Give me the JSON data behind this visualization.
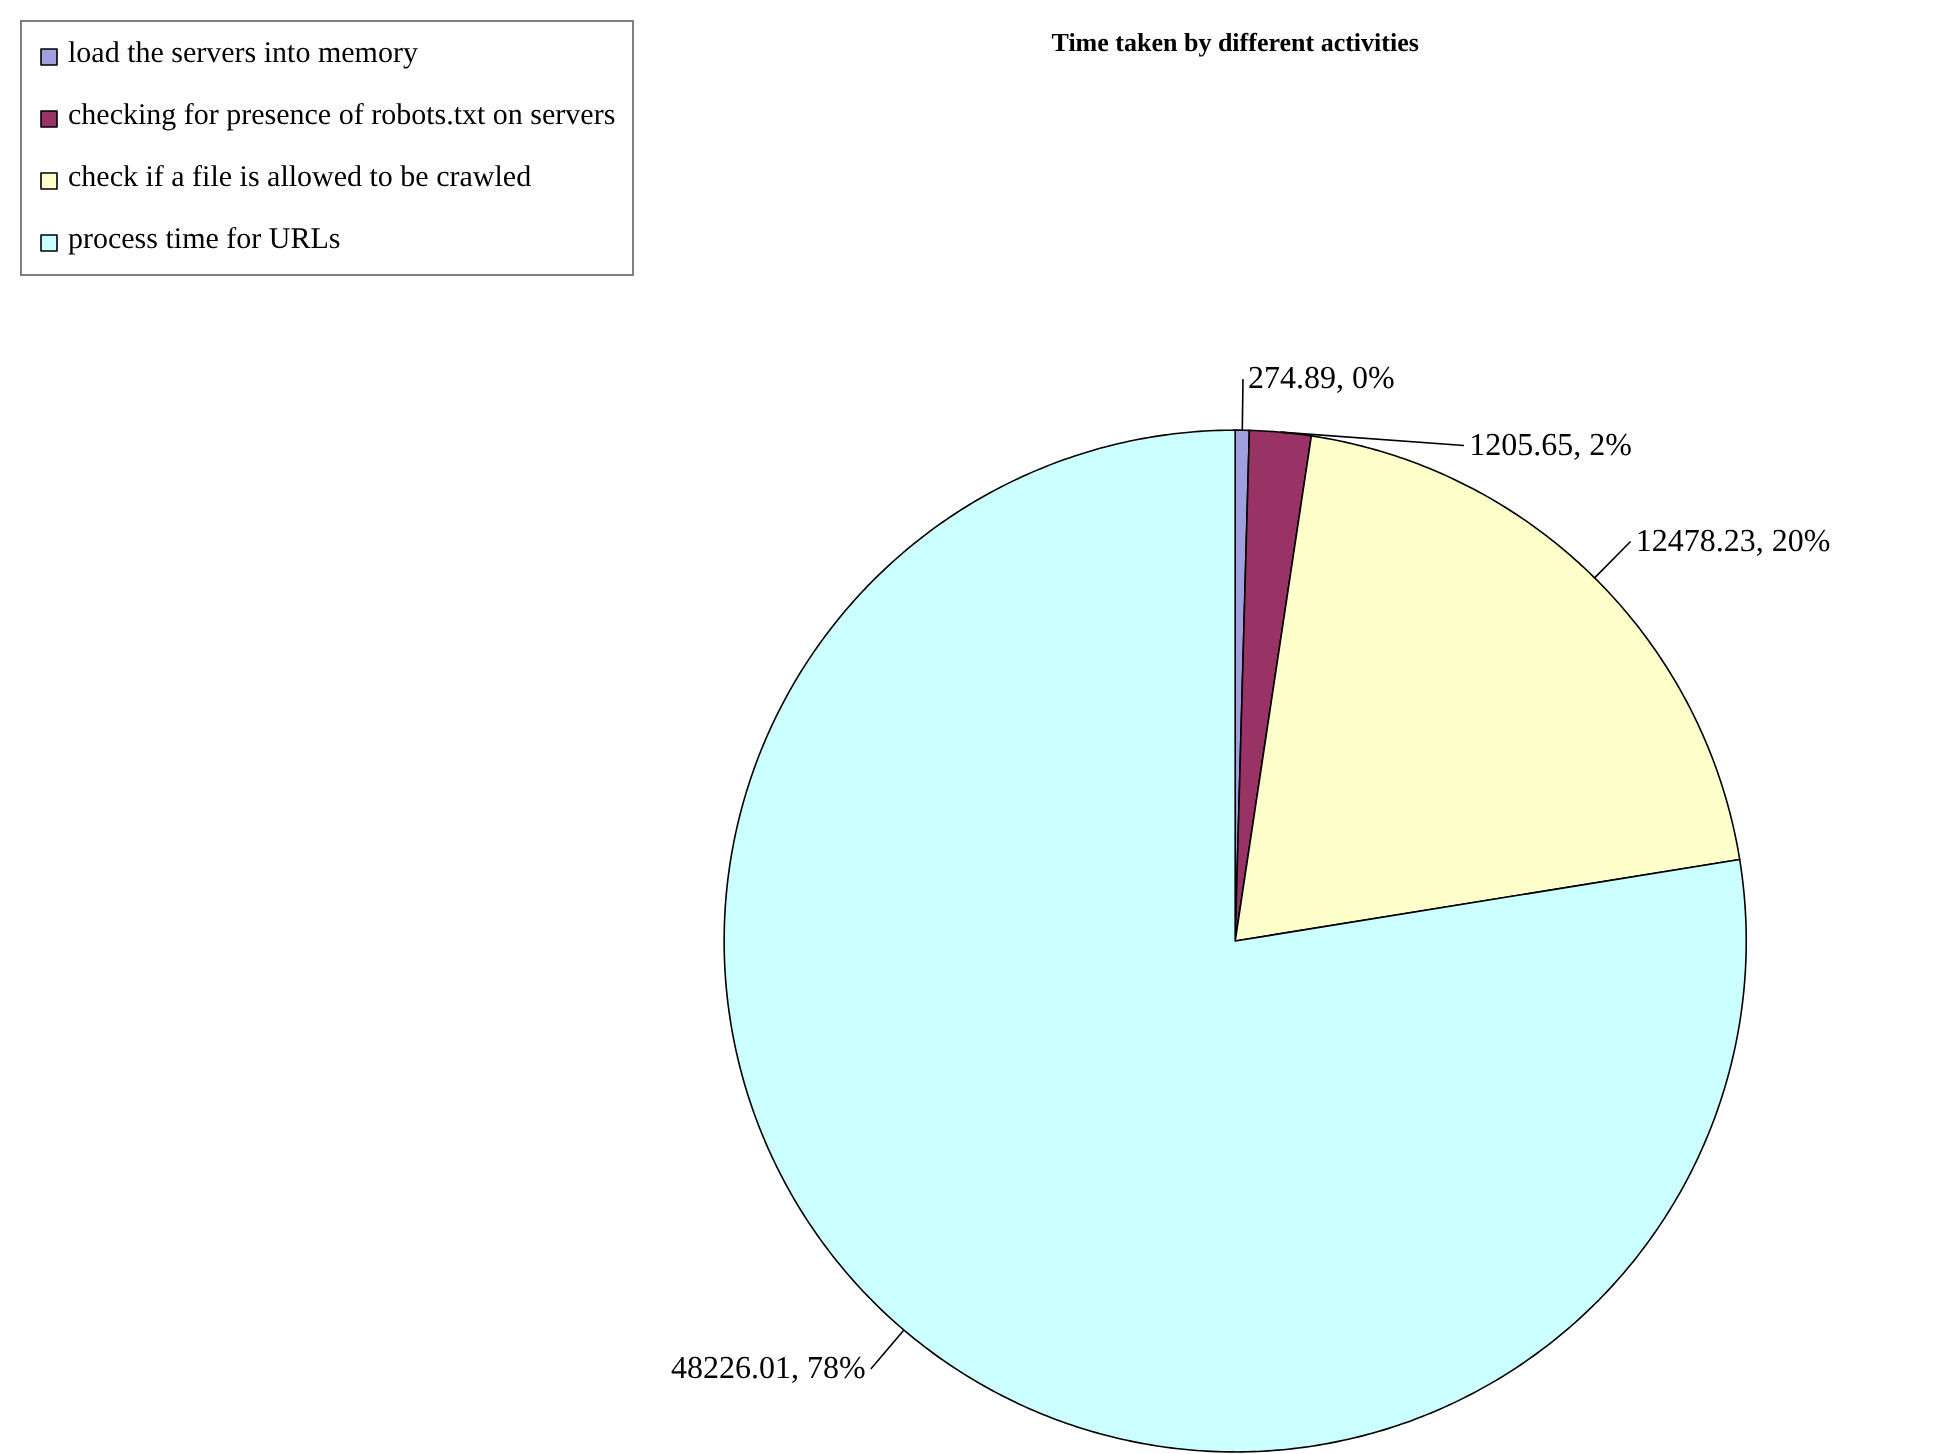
{
  "chart_data": {
    "type": "pie",
    "title": "Time taken by different activities",
    "categories": [
      "load the servers into memory",
      "checking for presence of robots.txt on servers",
      "check if a file is allowed to be crawled",
      "process time for URLs"
    ],
    "values": [
      274.89,
      1205.65,
      12478.23,
      48226.01
    ],
    "colors": [
      "#a0a0e0",
      "#993366",
      "#ffffcc",
      "#ccffff"
    ],
    "value_labels": [
      "274.89, 0%",
      "1205.65, 2%",
      "12478.23, 20%",
      "48226.01, 78%"
    ],
    "legend": "top left"
  }
}
